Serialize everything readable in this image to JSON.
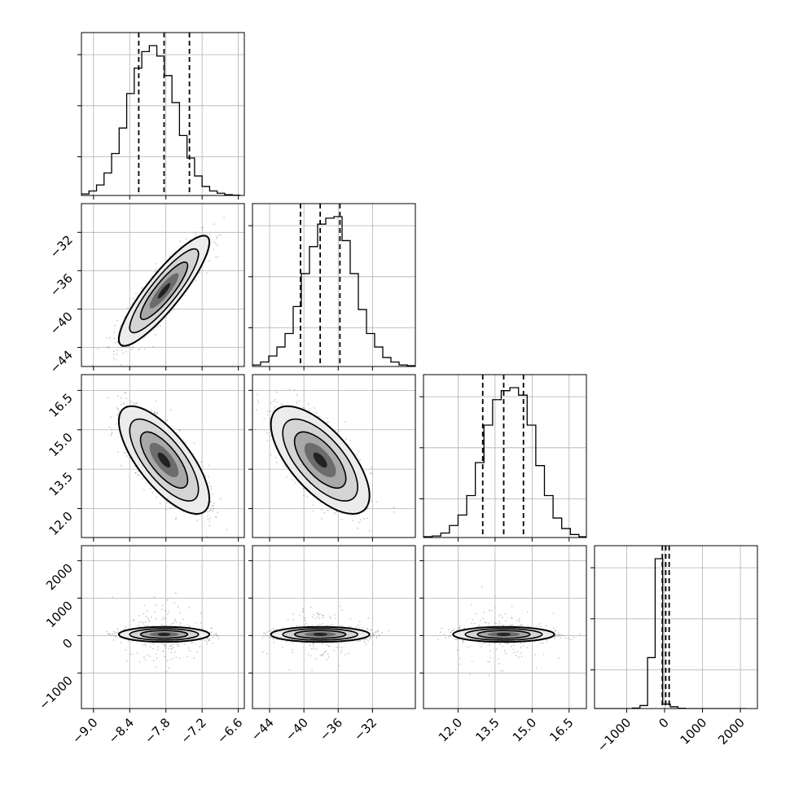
{
  "chart_data": {
    "type": "corner",
    "parameters": [
      "",
      "",
      "",
      ""
    ],
    "diagonal_histograms": [
      {
        "param_index": 0,
        "bin_start": -9.2,
        "bin_width": 0.125,
        "counts": [
          1,
          3,
          7,
          15,
          28,
          45,
          68,
          85,
          96,
          100,
          93,
          80,
          62,
          40,
          25,
          13,
          6,
          3,
          1.5,
          0.5,
          0.2
        ],
        "quantiles": [
          -8.25,
          -7.83,
          -7.41
        ],
        "xlim": [
          -9.2,
          -6.5
        ],
        "grid_x": [
          -9.0,
          -8.4,
          -7.8,
          -7.2,
          -6.6
        ]
      },
      {
        "param_index": 1,
        "bin_start": -46.0,
        "bin_width": 0.95,
        "counts": [
          1,
          3,
          7,
          13,
          22,
          40,
          62,
          80,
          95,
          99,
          100,
          84,
          62,
          38,
          22,
          13,
          6,
          3,
          1,
          0.5
        ],
        "quantiles": [
          -40.4,
          -38.1,
          -35.8
        ],
        "xlim": [
          -46,
          -27
        ],
        "grid_x": [
          -44,
          -40,
          -36,
          -32
        ]
      },
      {
        "param_index": 2,
        "bin_start": 10.6,
        "bin_width": 0.35,
        "counts": [
          0.5,
          1,
          3,
          8,
          15,
          28,
          50,
          75,
          92,
          98,
          100,
          95,
          75,
          48,
          28,
          13,
          6,
          2,
          0.5
        ],
        "quantiles": [
          13.0,
          13.85,
          14.65
        ],
        "xlim": [
          10.6,
          17.2
        ],
        "grid_x": [
          12.0,
          13.5,
          15.0,
          16.5
        ]
      },
      {
        "param_index": 3,
        "bin_start": -1850,
        "bin_width": 200,
        "counts": [
          0,
          0,
          0,
          0,
          0,
          0.3,
          2,
          34,
          100,
          3,
          1.2,
          0.2,
          0,
          0,
          0,
          0,
          0,
          0,
          0,
          0
        ],
        "quantiles": [
          -60,
          30,
          120
        ],
        "xlim": [
          -1850,
          2450
        ],
        "grid_x": [
          -1000,
          0,
          1000,
          2000
        ]
      }
    ],
    "correlations": [
      {
        "x_param": 0,
        "y_param": 1,
        "rho": 0.88
      },
      {
        "x_param": 0,
        "y_param": 2,
        "rho": -0.72
      },
      {
        "x_param": 1,
        "y_param": 2,
        "rho": -0.66
      },
      {
        "x_param": 0,
        "y_param": 3,
        "rho": 0.0
      },
      {
        "x_param": 1,
        "y_param": 3,
        "rho": 0.0
      },
      {
        "x_param": 2,
        "y_param": 3,
        "rho": 0.0
      }
    ],
    "distributions": [
      {
        "mean": -7.83,
        "sd": 0.3
      },
      {
        "mean": -38.1,
        "sd": 2.3
      },
      {
        "mean": 13.85,
        "sd": 0.82
      },
      {
        "mean": 30,
        "sd": 80
      }
    ],
    "axes": {
      "x_tick_labels": [
        [
          "−9.0",
          "−8.4",
          "−7.8",
          "−7.2",
          "−6.6"
        ],
        [
          "−44",
          "−40",
          "−36",
          "−32"
        ],
        [
          "12.0",
          "13.5",
          "15.0",
          "16.5"
        ],
        [
          "−1000",
          "0",
          "1000",
          "2000"
        ]
      ],
      "y_tick_labels": [
        [],
        [
          "−32",
          "−36",
          "−40",
          "−44"
        ],
        [
          "16.5",
          "15.0",
          "13.5",
          "12.0"
        ],
        [
          "2000",
          "1000",
          "0",
          "−1000"
        ]
      ],
      "y_tick_values": [
        [],
        [
          -32,
          -36,
          -40,
          -44
        ],
        [
          16.5,
          15.0,
          13.5,
          12.0
        ],
        [
          2000,
          1000,
          0,
          -1000
        ]
      ],
      "ylim": [
        null,
        [
          -46,
          -29
        ],
        [
          10.9,
          17.1
        ],
        [
          -1950,
          2400
        ]
      ]
    },
    "grid": true,
    "colors": {
      "points": "#5a5a5a",
      "lines": "#000000",
      "grid": "#b0b0b0"
    }
  }
}
